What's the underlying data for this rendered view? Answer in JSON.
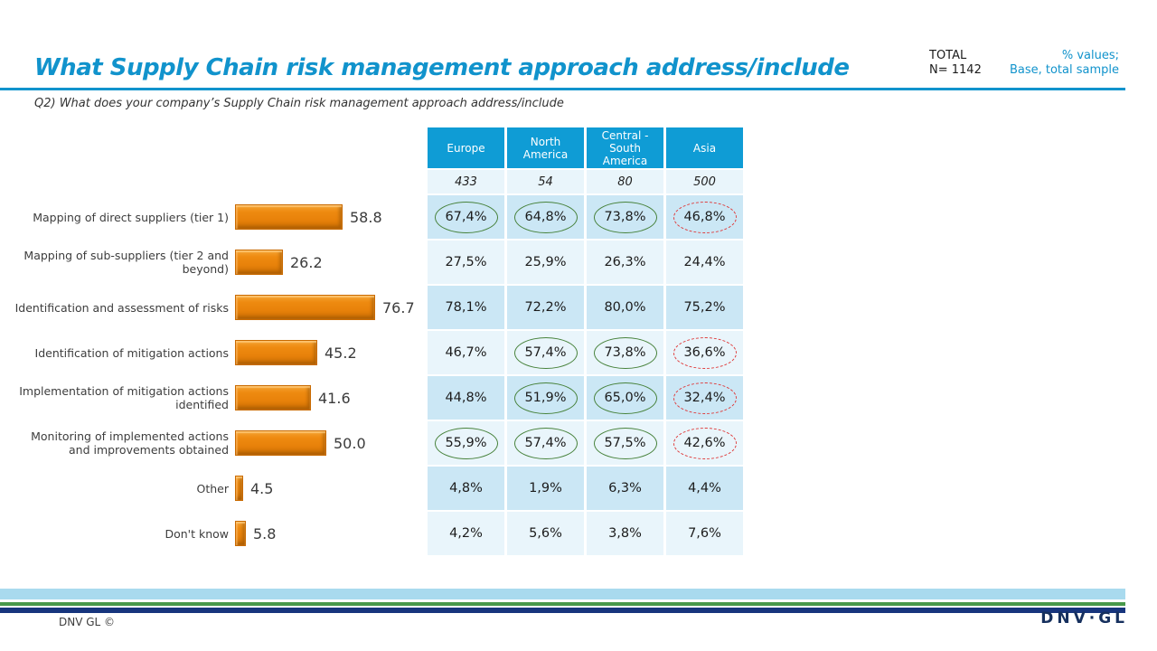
{
  "slide": {
    "title": "What Supply Chain risk management approach address/include",
    "question": "Q2) What does your company’s Supply Chain risk management approach address/include",
    "total": {
      "label": "TOTAL",
      "n": "N= 1142"
    },
    "note": {
      "line1": "% values;",
      "line2": "Base, total sample"
    }
  },
  "chart_data": {
    "type": "bar",
    "orientation": "horizontal",
    "title": "",
    "xlabel": "",
    "ylabel": "",
    "xlim": [
      0,
      100
    ],
    "grid": false,
    "bar_color": "#E8830C",
    "categories": [
      "Mapping of direct suppliers (tier 1)",
      "Mapping of sub-suppliers (tier 2 and beyond)",
      "Identification and assessment of risks",
      "Identification of mitigation actions",
      "Implementation of mitigation actions identified",
      "Monitoring of implemented actions and improvements obtained",
      "Other",
      "Don't know"
    ],
    "values": [
      58.8,
      26.2,
      76.7,
      45.2,
      41.6,
      50.0,
      4.5,
      5.8
    ],
    "value_labels": [
      "58.8",
      "26.2",
      "76.7",
      "45.2",
      "41.6",
      "50.0",
      "4.5",
      "5.8"
    ]
  },
  "table": {
    "columns": [
      "Europe",
      "North America",
      "Central - South America",
      "Asia"
    ],
    "base_sizes": [
      "433",
      "54",
      "80",
      "500"
    ],
    "rows": [
      {
        "cells": [
          {
            "v": "67,4%",
            "c": "green"
          },
          {
            "v": "64,8%",
            "c": "green"
          },
          {
            "v": "73,8%",
            "c": "green"
          },
          {
            "v": "46,8%",
            "c": "red"
          }
        ]
      },
      {
        "cells": [
          {
            "v": "27,5%"
          },
          {
            "v": "25,9%"
          },
          {
            "v": "26,3%"
          },
          {
            "v": "24,4%"
          }
        ]
      },
      {
        "cells": [
          {
            "v": "78,1%"
          },
          {
            "v": "72,2%"
          },
          {
            "v": "80,0%"
          },
          {
            "v": "75,2%"
          }
        ]
      },
      {
        "cells": [
          {
            "v": "46,7%"
          },
          {
            "v": "57,4%",
            "c": "green"
          },
          {
            "v": "73,8%",
            "c": "green"
          },
          {
            "v": "36,6%",
            "c": "red"
          }
        ]
      },
      {
        "cells": [
          {
            "v": "44,8%"
          },
          {
            "v": "51,9%",
            "c": "green"
          },
          {
            "v": "65,0%",
            "c": "green"
          },
          {
            "v": "32,4%",
            "c": "red"
          }
        ]
      },
      {
        "cells": [
          {
            "v": "55,9%",
            "c": "green"
          },
          {
            "v": "57,4%",
            "c": "green"
          },
          {
            "v": "57,5%",
            "c": "green"
          },
          {
            "v": "42,6%",
            "c": "red"
          }
        ]
      },
      {
        "cells": [
          {
            "v": "4,8%"
          },
          {
            "v": "1,9%"
          },
          {
            "v": "6,3%"
          },
          {
            "v": "4,4%"
          }
        ]
      },
      {
        "cells": [
          {
            "v": "4,2%"
          },
          {
            "v": "5,6%"
          },
          {
            "v": "3,8%"
          },
          {
            "v": "7,6%"
          }
        ]
      }
    ]
  },
  "footer": {
    "copyright": "DNV GL ©",
    "logo": "DNV·GL"
  },
  "colors": {
    "accent_blue": "#1193CC",
    "table_header_bg": "#0F9CD5",
    "row_dark": "#CBE7F5",
    "row_light": "#E9F5FB",
    "bar_orange": "#E8830C",
    "circle_green": "#47823B",
    "circle_red": "#DF3A3A",
    "stripe_light_blue": "#A9DAEE",
    "stripe_green": "#47984A",
    "stripe_navy": "#17357D",
    "logo_navy": "#16305E"
  }
}
